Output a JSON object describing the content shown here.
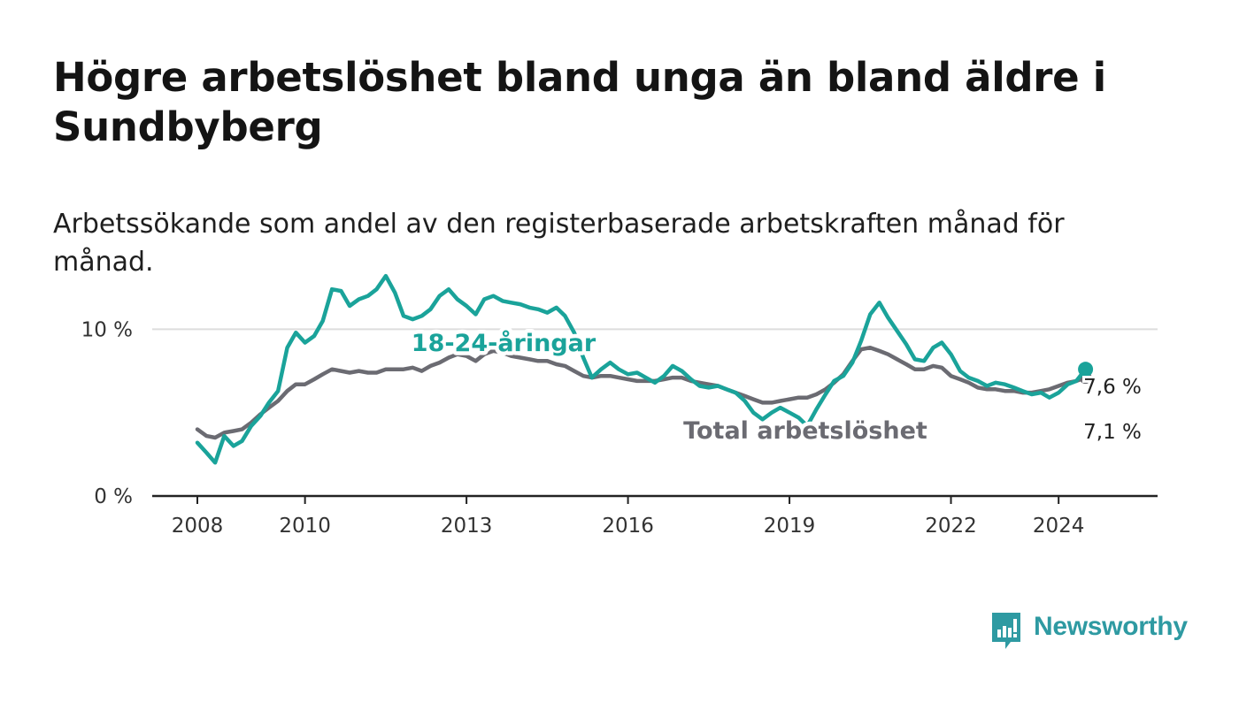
{
  "title": "Högre arbetslöshet bland unga än bland äldre i Sundbyberg",
  "subtitle": "Arbetssökande som andel av den registerbaserade arbetskraften månad för månad.",
  "brand": {
    "name": "Newsworthy"
  },
  "colors": {
    "young": "#1aa39a",
    "total": "#6b6b72",
    "grid": "#dddddd",
    "axis": "#222222",
    "brand": "#2e9aa2"
  },
  "chart_data": {
    "type": "line",
    "title": "Högre arbetslöshet bland unga än bland äldre i Sundbyberg",
    "xlabel": "",
    "ylabel": "",
    "xlim": [
      2008.0,
      2025.0
    ],
    "ylim": [
      0,
      14
    ],
    "x_ticks": [
      {
        "value": 2008,
        "label": "2008"
      },
      {
        "value": 2010,
        "label": "2010"
      },
      {
        "value": 2013,
        "label": "2013"
      },
      {
        "value": 2016,
        "label": "2016"
      },
      {
        "value": 2019,
        "label": "2019"
      },
      {
        "value": 2022,
        "label": "2022"
      },
      {
        "value": 2024,
        "label": "2024"
      }
    ],
    "y_ticks": [
      {
        "value": 0,
        "label": "0 %"
      },
      {
        "value": 10,
        "label": "10 %"
      }
    ],
    "series": [
      {
        "name": "18-24-åringar",
        "label": "18-24-åringar",
        "end_label": "7,6 %",
        "color": "#1aa39a",
        "x": [
          2008.0,
          2008.17,
          2008.33,
          2008.5,
          2008.67,
          2008.83,
          2009.0,
          2009.17,
          2009.33,
          2009.5,
          2009.67,
          2009.83,
          2010.0,
          2010.17,
          2010.33,
          2010.5,
          2010.67,
          2010.83,
          2011.0,
          2011.17,
          2011.33,
          2011.5,
          2011.67,
          2011.83,
          2012.0,
          2012.17,
          2012.33,
          2012.5,
          2012.67,
          2012.83,
          2013.0,
          2013.17,
          2013.33,
          2013.5,
          2013.67,
          2013.83,
          2014.0,
          2014.17,
          2014.33,
          2014.5,
          2014.67,
          2014.83,
          2015.0,
          2015.17,
          2015.33,
          2015.5,
          2015.67,
          2015.83,
          2016.0,
          2016.17,
          2016.33,
          2016.5,
          2016.67,
          2016.83,
          2017.0,
          2017.17,
          2017.33,
          2017.5,
          2017.67,
          2017.83,
          2018.0,
          2018.17,
          2018.33,
          2018.5,
          2018.67,
          2018.83,
          2019.0,
          2019.17,
          2019.33,
          2019.5,
          2019.67,
          2019.83,
          2020.0,
          2020.17,
          2020.33,
          2020.5,
          2020.67,
          2020.83,
          2021.0,
          2021.17,
          2021.33,
          2021.5,
          2021.67,
          2021.83,
          2022.0,
          2022.17,
          2022.33,
          2022.5,
          2022.67,
          2022.83,
          2023.0,
          2023.17,
          2023.33,
          2023.5,
          2023.67,
          2023.83,
          2024.0,
          2024.17,
          2024.33,
          2024.5
        ],
        "values": [
          3.2,
          2.6,
          2.0,
          3.6,
          3.0,
          3.3,
          4.2,
          4.8,
          5.6,
          6.3,
          8.9,
          9.8,
          9.2,
          9.6,
          10.5,
          12.4,
          12.3,
          11.4,
          11.8,
          12.0,
          12.4,
          13.2,
          12.2,
          10.8,
          10.6,
          10.8,
          11.2,
          12.0,
          12.4,
          11.8,
          11.4,
          10.9,
          11.8,
          12.0,
          11.7,
          11.6,
          11.5,
          11.3,
          11.2,
          11.0,
          11.3,
          10.8,
          9.8,
          8.3,
          7.1,
          7.6,
          8.0,
          7.6,
          7.3,
          7.4,
          7.1,
          6.8,
          7.2,
          7.8,
          7.5,
          7.0,
          6.6,
          6.5,
          6.6,
          6.4,
          6.2,
          5.7,
          5.0,
          4.6,
          5.0,
          5.3,
          5.0,
          4.7,
          4.2,
          5.2,
          6.1,
          6.9,
          7.2,
          8.0,
          9.3,
          10.9,
          11.6,
          10.7,
          9.9,
          9.1,
          8.2,
          8.1,
          8.9,
          9.2,
          8.5,
          7.5,
          7.1,
          6.9,
          6.6,
          6.8,
          6.7,
          6.5,
          6.3,
          6.1,
          6.2,
          5.9,
          6.2,
          6.7,
          6.9,
          7.6
        ]
      },
      {
        "name": "Total arbetslöshet",
        "label": "Total arbetslöshet",
        "end_label": "7,1 %",
        "color": "#6b6b72",
        "x": [
          2008.0,
          2008.17,
          2008.33,
          2008.5,
          2008.67,
          2008.83,
          2009.0,
          2009.17,
          2009.33,
          2009.5,
          2009.67,
          2009.83,
          2010.0,
          2010.17,
          2010.33,
          2010.5,
          2010.67,
          2010.83,
          2011.0,
          2011.17,
          2011.33,
          2011.5,
          2011.67,
          2011.83,
          2012.0,
          2012.17,
          2012.33,
          2012.5,
          2012.67,
          2012.83,
          2013.0,
          2013.17,
          2013.33,
          2013.5,
          2013.67,
          2013.83,
          2014.0,
          2014.17,
          2014.33,
          2014.5,
          2014.67,
          2014.83,
          2015.0,
          2015.17,
          2015.33,
          2015.5,
          2015.67,
          2015.83,
          2016.0,
          2016.17,
          2016.33,
          2016.5,
          2016.67,
          2016.83,
          2017.0,
          2017.17,
          2017.33,
          2017.5,
          2017.67,
          2017.83,
          2018.0,
          2018.17,
          2018.33,
          2018.5,
          2018.67,
          2018.83,
          2019.0,
          2019.17,
          2019.33,
          2019.5,
          2019.67,
          2019.83,
          2020.0,
          2020.17,
          2020.33,
          2020.5,
          2020.67,
          2020.83,
          2021.0,
          2021.17,
          2021.33,
          2021.5,
          2021.67,
          2021.83,
          2022.0,
          2022.17,
          2022.33,
          2022.5,
          2022.67,
          2022.83,
          2023.0,
          2023.17,
          2023.33,
          2023.5,
          2023.67,
          2023.83,
          2024.0,
          2024.17,
          2024.33,
          2024.5
        ],
        "values": [
          4.0,
          3.6,
          3.5,
          3.8,
          3.9,
          4.0,
          4.4,
          4.9,
          5.3,
          5.7,
          6.3,
          6.7,
          6.7,
          7.0,
          7.3,
          7.6,
          7.5,
          7.4,
          7.5,
          7.4,
          7.4,
          7.6,
          7.6,
          7.6,
          7.7,
          7.5,
          7.8,
          8.0,
          8.3,
          8.5,
          8.4,
          8.1,
          8.5,
          8.7,
          8.6,
          8.4,
          8.3,
          8.2,
          8.1,
          8.1,
          7.9,
          7.8,
          7.5,
          7.2,
          7.1,
          7.2,
          7.2,
          7.1,
          7.0,
          6.9,
          6.9,
          6.9,
          7.0,
          7.1,
          7.1,
          6.9,
          6.8,
          6.7,
          6.6,
          6.4,
          6.2,
          6.0,
          5.8,
          5.6,
          5.6,
          5.7,
          5.8,
          5.9,
          5.9,
          6.1,
          6.4,
          6.8,
          7.3,
          8.1,
          8.8,
          8.9,
          8.7,
          8.5,
          8.2,
          7.9,
          7.6,
          7.6,
          7.8,
          7.7,
          7.2,
          7.0,
          6.8,
          6.5,
          6.4,
          6.4,
          6.3,
          6.3,
          6.2,
          6.2,
          6.3,
          6.4,
          6.6,
          6.8,
          6.9,
          7.1
        ]
      }
    ]
  }
}
